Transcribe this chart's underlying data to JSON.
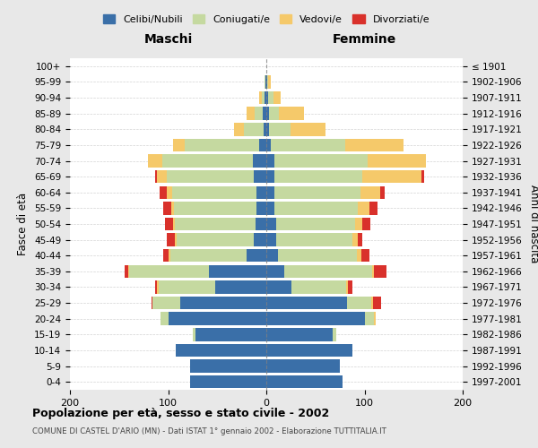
{
  "age_groups": [
    "0-4",
    "5-9",
    "10-14",
    "15-19",
    "20-24",
    "25-29",
    "30-34",
    "35-39",
    "40-44",
    "45-49",
    "50-54",
    "55-59",
    "60-64",
    "65-69",
    "70-74",
    "75-79",
    "80-84",
    "85-89",
    "90-94",
    "95-99",
    "100+"
  ],
  "birth_years": [
    "1997-2001",
    "1992-1996",
    "1987-1991",
    "1982-1986",
    "1977-1981",
    "1972-1976",
    "1967-1971",
    "1962-1966",
    "1957-1961",
    "1952-1956",
    "1947-1951",
    "1942-1946",
    "1937-1941",
    "1932-1936",
    "1927-1931",
    "1922-1926",
    "1917-1921",
    "1912-1916",
    "1907-1911",
    "1902-1906",
    "≤ 1901"
  ],
  "maschi": {
    "celibi": [
      78,
      78,
      92,
      72,
      100,
      88,
      52,
      58,
      20,
      13,
      11,
      10,
      10,
      13,
      14,
      7,
      3,
      4,
      2,
      1,
      0
    ],
    "coniugati": [
      0,
      0,
      0,
      3,
      8,
      28,
      58,
      82,
      78,
      78,
      82,
      84,
      86,
      88,
      92,
      76,
      20,
      8,
      3,
      1,
      0
    ],
    "vedovi": [
      0,
      0,
      0,
      0,
      0,
      0,
      1,
      1,
      2,
      2,
      2,
      3,
      5,
      10,
      15,
      12,
      10,
      8,
      2,
      0,
      0
    ],
    "divorziati": [
      0,
      0,
      0,
      0,
      0,
      1,
      2,
      3,
      5,
      8,
      8,
      8,
      8,
      2,
      0,
      0,
      0,
      0,
      0,
      0,
      0
    ]
  },
  "femmine": {
    "nubili": [
      78,
      75,
      88,
      68,
      100,
      82,
      26,
      18,
      12,
      10,
      10,
      8,
      8,
      8,
      8,
      5,
      3,
      3,
      2,
      1,
      0
    ],
    "coniugate": [
      0,
      0,
      0,
      3,
      10,
      25,
      55,
      90,
      80,
      78,
      80,
      85,
      88,
      90,
      95,
      75,
      22,
      10,
      5,
      1,
      0
    ],
    "vedove": [
      0,
      0,
      0,
      0,
      1,
      2,
      2,
      2,
      5,
      5,
      8,
      12,
      20,
      60,
      60,
      60,
      35,
      25,
      8,
      3,
      0
    ],
    "divorziate": [
      0,
      0,
      0,
      0,
      0,
      8,
      5,
      12,
      8,
      5,
      8,
      8,
      5,
      3,
      0,
      0,
      0,
      0,
      0,
      0,
      0
    ]
  },
  "color_celibi": "#3a6fa8",
  "color_coniugati": "#c5d9a0",
  "color_vedovi": "#f5c96a",
  "color_divorziati": "#d9312b",
  "title": "Popolazione per età, sesso e stato civile - 2002",
  "subtitle": "COMUNE DI CASTEL D'ARIO (MN) - Dati ISTAT 1° gennaio 2002 - Elaborazione TUTTITALIA.IT",
  "xlabel_left": "Maschi",
  "xlabel_right": "Femmine",
  "ylabel_left": "Fasce di età",
  "ylabel_right": "Anni di nascita",
  "xlim": 200,
  "bg_color": "#e8e8e8",
  "plot_bg": "#ffffff"
}
